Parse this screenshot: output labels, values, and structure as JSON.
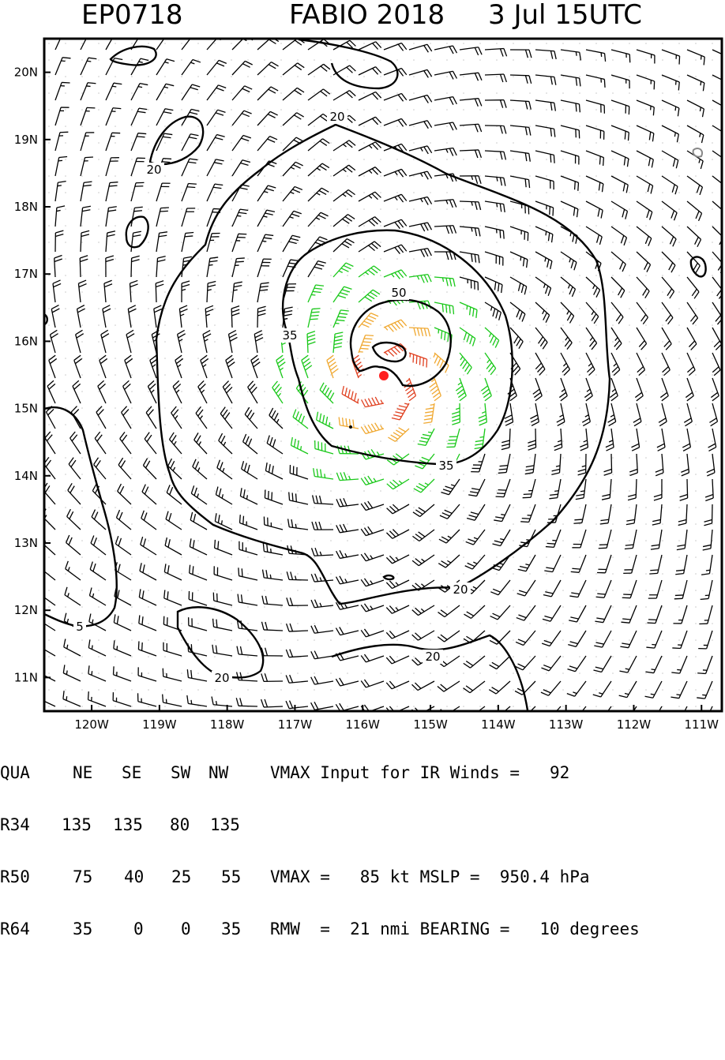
{
  "header": {
    "storm_id": "EP0718",
    "storm_name_year": "FABIO 2018",
    "datetime": "3 Jul 15UTC"
  },
  "chart_data": {
    "type": "wind-barb-map",
    "title": "EP0718   FABIO 2018   3 Jul 15UTC",
    "x_ticks": [
      "120W",
      "119W",
      "118W",
      "117W",
      "116W",
      "115W",
      "114W",
      "113W",
      "112W",
      "111W"
    ],
    "x_values": [
      -120,
      -119,
      -118,
      -117,
      -116,
      -115,
      -114,
      -113,
      -112,
      -111
    ],
    "y_ticks": [
      "11N",
      "12N",
      "13N",
      "14N",
      "15N",
      "16N",
      "17N",
      "18N",
      "19N",
      "20N"
    ],
    "y_values": [
      11,
      12,
      13,
      14,
      15,
      16,
      17,
      18,
      19,
      20
    ],
    "xlim": [
      -120.7,
      -110.7
    ],
    "ylim": [
      10.5,
      20.5
    ],
    "center": {
      "lon": -115.63,
      "lat": 15.45
    },
    "rmw_nmi": 21,
    "vmax_kt": 85,
    "contours": [
      {
        "label": "20",
        "level": 20
      },
      {
        "label": "35",
        "level": 35
      },
      {
        "label": "50",
        "level": 50
      },
      {
        "label": "20",
        "level": 20
      },
      {
        "label": "20",
        "level": 20
      },
      {
        "label": "5",
        "level": 5
      }
    ],
    "colors": {
      "below_34": "#000000",
      "r34": "#19c819",
      "r50": "#f0a830",
      "r64": "#e04020",
      "center": "#ff2020"
    }
  },
  "table": {
    "header_row": [
      "QUA",
      "NE",
      "SE",
      "SW",
      "NW"
    ],
    "rows": [
      [
        "R34",
        "135",
        "135",
        "80",
        "135"
      ],
      [
        "R50",
        "75",
        "40",
        "25",
        "55"
      ],
      [
        "R64",
        "35",
        "0",
        "0",
        "35"
      ]
    ]
  },
  "stats": {
    "line1": "VMAX Input for IR Winds =   92",
    "line2": "VMAX =   85 kt MSLP =  950.4 hPa",
    "line3": "RMW  =  21 nmi BEARING =   10 degrees"
  }
}
